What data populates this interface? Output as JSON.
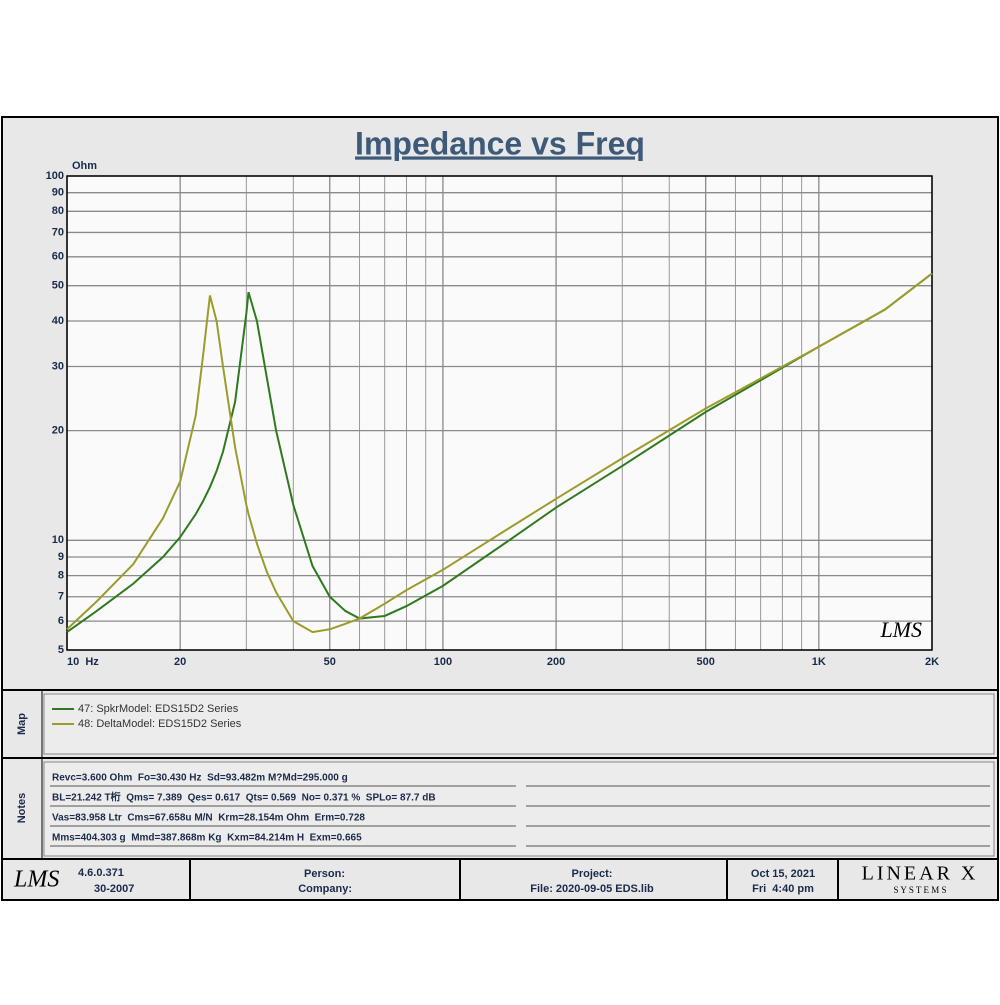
{
  "chart_data": {
    "type": "line",
    "title": "Impedance vs Freq",
    "y_label": "Ohm",
    "xscale": "log",
    "yscale": "log",
    "grid": true,
    "x": [
      10,
      12,
      15,
      18,
      20,
      22,
      23,
      24,
      25,
      26,
      28,
      30,
      30.4,
      32,
      34,
      36,
      40,
      45,
      50,
      55,
      60,
      70,
      80,
      100,
      150,
      200,
      300,
      500,
      700,
      1000,
      1500,
      2000
    ],
    "xlim": [
      10,
      2000
    ],
    "ylim": [
      5,
      100
    ],
    "xticks": [
      {
        "value": 10,
        "label": "10  Hz"
      },
      20,
      50,
      100,
      200,
      500,
      {
        "value": 1000,
        "label": "1K"
      },
      {
        "value": 2000,
        "label": "2K"
      }
    ],
    "xminor": [
      30,
      40,
      60,
      70,
      80,
      90,
      300,
      400,
      600,
      700,
      800,
      900
    ],
    "yticks": [
      5,
      6,
      7,
      8,
      9,
      10,
      20,
      30,
      40,
      50,
      60,
      70,
      80,
      90,
      100
    ],
    "series": [
      {
        "name": "47: SpkrModel: EDS15D2 Series",
        "color": "#2f7a1f",
        "values": [
          5.6,
          6.4,
          7.6,
          9.0,
          10.2,
          11.8,
          12.8,
          14,
          15.5,
          17.5,
          24,
          42,
          48,
          40,
          28,
          20,
          12.5,
          8.5,
          7.0,
          6.4,
          6.1,
          6.2,
          6.6,
          7.5,
          10,
          12.3,
          16,
          22.5,
          27.5,
          34,
          43,
          54
        ]
      },
      {
        "name": "48: DeltaModel: EDS15D2 Series",
        "color": "#9c9c2c",
        "values": [
          5.7,
          6.8,
          8.6,
          11.5,
          14.5,
          22,
          32,
          47,
          40,
          30,
          18,
          12.5,
          11.8,
          9.8,
          8.2,
          7.2,
          6.0,
          5.6,
          5.7,
          5.9,
          6.1,
          6.7,
          7.3,
          8.3,
          10.8,
          13,
          16.8,
          23,
          27.8,
          34,
          43,
          54
        ]
      }
    ],
    "watermark": "LMS"
  },
  "map": {
    "label": "Map"
  },
  "notes": {
    "label": "Notes",
    "lines": [
      "Revc=3.600 Ohm  Fo=30.430 Hz  Sd=93.482m M?Md=295.000 g",
      "BL=21.242 T桁  Qms= 7.389  Qes= 0.617  Qts= 0.569  No= 0.371 %  SPLo= 87.7 dB",
      "Vas=83.958 Ltr  Cms=67.658u M/N  Krm=28.154m Ohm  Erm=0.728",
      "Mms=404.303 g  Mmd=387.868m Kg  Kxm=84.214m H  Exm=0.665"
    ]
  },
  "footer": {
    "logo": "LMS",
    "version": "4.6.0.371",
    "build": "30-2007",
    "person": "Person:",
    "company": "Company:",
    "project": "Project:",
    "file": "File: 2020-09-05 EDS.lib",
    "date": "Oct 15, 2021",
    "time": "Fri  4:40 pm",
    "brand": "LINEAR X",
    "brand_sub": "S Y S T E M S"
  }
}
